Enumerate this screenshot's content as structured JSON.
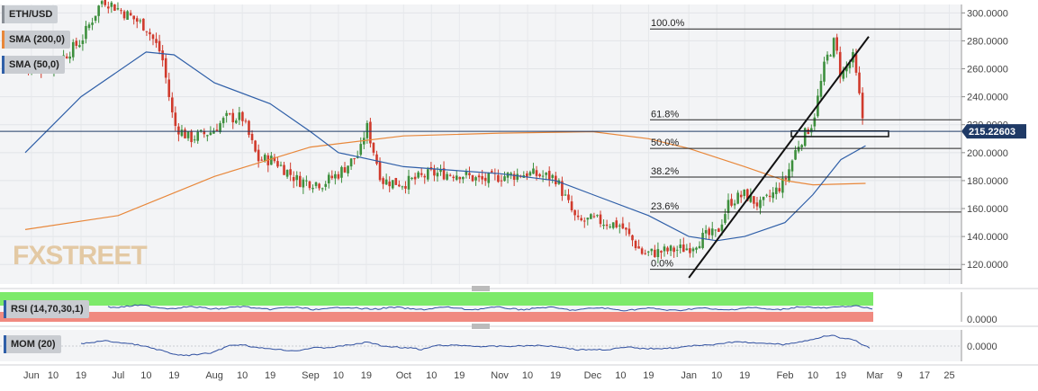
{
  "chart_data": {
    "type": "candlestick",
    "symbol": "ETH/USD",
    "indicators": [
      {
        "name": "SMA (200,0)",
        "color": "#e8873a"
      },
      {
        "name": "SMA (50,0)",
        "color": "#2f5fa8"
      }
    ],
    "current_price_label": "215.22603",
    "current_price": 215.22603,
    "y_axis": {
      "range": [
        106,
        306
      ],
      "ticks": [
        "300.0000",
        "280.0000",
        "260.0000",
        "240.0000",
        "220.0000",
        "200.0000",
        "180.0000",
        "160.0000",
        "140.0000",
        "120.0000"
      ],
      "tick_values": [
        300,
        280,
        260,
        240,
        220,
        200,
        180,
        160,
        140,
        120
      ]
    },
    "x_axis": {
      "ticks": [
        "Jun",
        "10",
        "19",
        "Jul",
        "10",
        "19",
        "Aug",
        "10",
        "19",
        "Sep",
        "10",
        "19",
        "Oct",
        "10",
        "19",
        "Nov",
        "10",
        "19",
        "Dec",
        "10",
        "19",
        "Jan",
        "10",
        "19",
        "Feb",
        "10",
        "19",
        "Mar",
        "9",
        "17",
        "25"
      ]
    },
    "fibonacci": [
      {
        "label": "100.0%",
        "price": 288.5
      },
      {
        "label": "61.8%",
        "price": 223.5
      },
      {
        "label": "50.0%",
        "price": 203.0
      },
      {
        "label": "38.2%",
        "price": 182.5
      },
      {
        "label": "23.6%",
        "price": 157.5
      },
      {
        "label": "0.0%",
        "price": 116.5
      }
    ],
    "trendline": {
      "start": [
        "2020-01-01",
        110.5
      ],
      "end": [
        "2020-02-28",
        283.0
      ]
    },
    "support_box": {
      "price_low": 211.5,
      "price_high": 215.5,
      "label": ""
    },
    "price_path": [
      [
        "2019-06-01",
        260
      ],
      [
        "2019-06-10",
        262
      ],
      [
        "2019-06-19",
        280
      ],
      [
        "2019-06-26",
        310
      ],
      [
        "2019-07-03",
        300
      ],
      [
        "2019-07-10",
        290
      ],
      [
        "2019-07-15",
        270
      ],
      [
        "2019-07-19",
        220
      ],
      [
        "2019-07-24",
        210
      ],
      [
        "2019-07-31",
        215
      ],
      [
        "2019-08-05",
        225
      ],
      [
        "2019-08-10",
        225
      ],
      [
        "2019-08-15",
        195
      ],
      [
        "2019-08-20",
        195
      ],
      [
        "2019-08-28",
        180
      ],
      [
        "2019-09-05",
        178
      ],
      [
        "2019-09-10",
        185
      ],
      [
        "2019-09-17",
        200
      ],
      [
        "2019-09-19",
        220
      ],
      [
        "2019-09-24",
        180
      ],
      [
        "2019-10-01",
        178
      ],
      [
        "2019-10-10",
        185
      ],
      [
        "2019-10-19",
        185
      ],
      [
        "2019-10-26",
        180
      ],
      [
        "2019-11-01",
        183
      ],
      [
        "2019-11-10",
        185
      ],
      [
        "2019-11-19",
        182
      ],
      [
        "2019-11-26",
        150
      ],
      [
        "2019-12-01",
        152
      ],
      [
        "2019-12-10",
        148
      ],
      [
        "2019-12-17",
        128
      ],
      [
        "2019-12-19",
        128
      ],
      [
        "2019-12-26",
        130
      ],
      [
        "2020-01-01",
        132
      ],
      [
        "2020-01-06",
        140
      ],
      [
        "2020-01-10",
        142
      ],
      [
        "2020-01-14",
        165
      ],
      [
        "2020-01-19",
        170
      ],
      [
        "2020-01-24",
        162
      ],
      [
        "2020-01-28",
        170
      ],
      [
        "2020-02-01",
        180
      ],
      [
        "2020-02-05",
        205
      ],
      [
        "2020-02-10",
        222
      ],
      [
        "2020-02-14",
        265
      ],
      [
        "2020-02-17",
        280
      ],
      [
        "2020-02-19",
        255
      ],
      [
        "2020-02-23",
        268
      ],
      [
        "2020-02-26",
        225
      ],
      [
        "2020-02-27",
        215
      ]
    ],
    "sma200": [
      [
        "2019-06-01",
        145
      ],
      [
        "2019-07-01",
        155
      ],
      [
        "2019-08-01",
        183
      ],
      [
        "2019-09-01",
        204
      ],
      [
        "2019-10-01",
        212
      ],
      [
        "2019-11-01",
        214
      ],
      [
        "2019-12-01",
        215
      ],
      [
        "2019-12-19",
        210
      ],
      [
        "2020-01-01",
        203
      ],
      [
        "2020-01-19",
        190
      ],
      [
        "2020-02-01",
        180
      ],
      [
        "2020-02-10",
        177
      ],
      [
        "2020-02-27",
        178
      ]
    ],
    "sma50": [
      [
        "2019-06-01",
        200
      ],
      [
        "2019-06-19",
        240
      ],
      [
        "2019-07-10",
        272
      ],
      [
        "2019-07-19",
        270
      ],
      [
        "2019-08-01",
        250
      ],
      [
        "2019-08-19",
        235
      ],
      [
        "2019-09-01",
        215
      ],
      [
        "2019-09-10",
        200
      ],
      [
        "2019-10-01",
        190
      ],
      [
        "2019-10-19",
        187
      ],
      [
        "2019-11-01",
        185
      ],
      [
        "2019-11-19",
        180
      ],
      [
        "2019-12-01",
        170
      ],
      [
        "2019-12-19",
        155
      ],
      [
        "2020-01-01",
        140
      ],
      [
        "2020-01-10",
        137
      ],
      [
        "2020-01-19",
        140
      ],
      [
        "2020-02-01",
        150
      ],
      [
        "2020-02-10",
        170
      ],
      [
        "2020-02-19",
        195
      ],
      [
        "2020-02-27",
        205
      ]
    ],
    "rsi_panel": {
      "label": "RSI (14,70,30,1)",
      "axis_tick": "0.0000",
      "overbought_color": "#7dea6a",
      "oversold_color": "#f08a80"
    },
    "mom_panel": {
      "label": "MOM (20)",
      "axis_tick": "0.0000"
    },
    "branding": "FXSTREET"
  }
}
